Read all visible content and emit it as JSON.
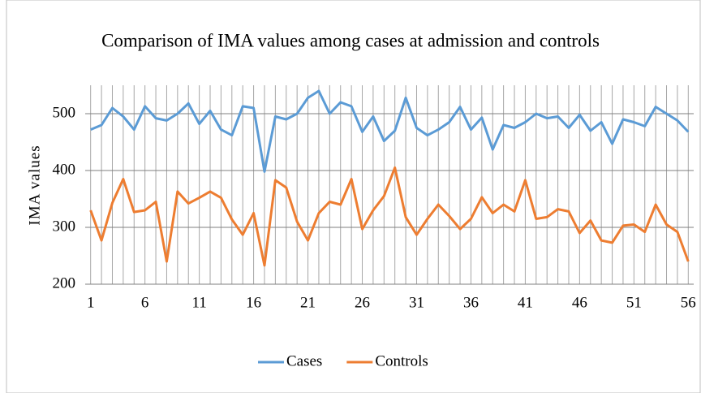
{
  "chart_data": {
    "type": "line",
    "title": "Comparison of IMA values  among cases at admission  and controls",
    "y_label": "IMA  values",
    "x": [
      1,
      2,
      3,
      4,
      5,
      6,
      7,
      8,
      9,
      10,
      11,
      12,
      13,
      14,
      15,
      16,
      17,
      18,
      19,
      20,
      21,
      22,
      23,
      24,
      25,
      26,
      27,
      28,
      29,
      30,
      31,
      32,
      33,
      34,
      35,
      36,
      37,
      38,
      39,
      40,
      41,
      42,
      43,
      44,
      45,
      46,
      47,
      48,
      49,
      50,
      51,
      52,
      53,
      54,
      55,
      56
    ],
    "xlim": [
      0.5,
      56.5
    ],
    "xticks": [
      1,
      6,
      11,
      16,
      21,
      26,
      31,
      36,
      41,
      46,
      51,
      56
    ],
    "ylim": [
      200,
      550
    ],
    "yticks": [
      200,
      300,
      400,
      500
    ],
    "grid": true,
    "legend": "bottom",
    "series": [
      {
        "name": "Cases",
        "color": "#5b9bd5",
        "values": [
          472,
          480,
          510,
          495,
          472,
          513,
          492,
          488,
          500,
          518,
          482,
          505,
          472,
          462,
          513,
          510,
          398,
          495,
          490,
          500,
          528,
          540,
          500,
          520,
          513,
          468,
          495,
          452,
          470,
          528,
          475,
          462,
          472,
          485,
          512,
          472,
          493,
          437,
          480,
          475,
          485,
          500,
          492,
          495,
          475,
          498,
          470,
          485,
          447,
          490,
          485,
          478,
          512,
          500,
          488,
          468
        ]
      },
      {
        "name": "Controls",
        "color": "#ed7d31",
        "values": [
          330,
          277,
          343,
          385,
          327,
          330,
          345,
          240,
          363,
          342,
          352,
          363,
          352,
          314,
          287,
          325,
          233,
          383,
          370,
          310,
          277,
          325,
          345,
          340,
          385,
          297,
          330,
          355,
          405,
          318,
          287,
          315,
          340,
          320,
          297,
          315,
          353,
          325,
          340,
          328,
          383,
          315,
          318,
          332,
          328,
          290,
          312,
          277,
          273,
          303,
          305,
          292,
          340,
          305,
          292,
          240
        ]
      }
    ]
  }
}
